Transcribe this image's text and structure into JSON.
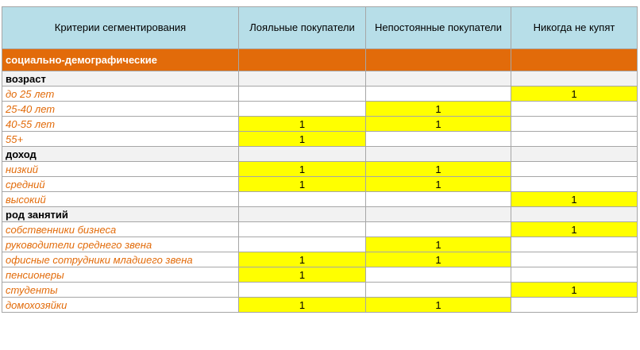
{
  "headers": [
    "Критерии сегментирования",
    "Лояльные покупатели",
    "Непостоянные покупатели",
    "Никогда не купят"
  ],
  "section_title": "социально-демографические",
  "groups": [
    {
      "title": "возраст",
      "items": [
        {
          "label": "до 25 лет",
          "values": [
            "",
            "",
            "1"
          ]
        },
        {
          "label": "25-40 лет",
          "values": [
            "",
            "1",
            ""
          ]
        },
        {
          "label": "40-55 лет",
          "values": [
            "1",
            "1",
            ""
          ]
        },
        {
          "label": "55+",
          "values": [
            "1",
            "",
            ""
          ]
        }
      ]
    },
    {
      "title": "доход",
      "items": [
        {
          "label": "низкий",
          "values": [
            "1",
            "1",
            ""
          ]
        },
        {
          "label": "средний",
          "values": [
            "1",
            "1",
            ""
          ]
        },
        {
          "label": "высокий",
          "values": [
            "",
            "",
            "1"
          ]
        }
      ]
    },
    {
      "title": "род занятий",
      "items": [
        {
          "label": "собственники бизнеса",
          "values": [
            "",
            "",
            "1"
          ]
        },
        {
          "label": "руководители среднего звена",
          "values": [
            "",
            "1",
            ""
          ]
        },
        {
          "label": "офисные сотрудники младшего звена",
          "values": [
            "1",
            "1",
            ""
          ]
        },
        {
          "label": "пенсионеры",
          "values": [
            "1",
            "",
            ""
          ]
        },
        {
          "label": "студенты",
          "values": [
            "",
            "",
            "1"
          ]
        },
        {
          "label": "домохозяйки",
          "values": [
            "1",
            "1",
            ""
          ]
        }
      ]
    }
  ],
  "colors": {
    "header_bg": "#b7dee8",
    "section_bg": "#e26b0a",
    "label_text": "#e26b0a",
    "highlight": "#ffff00",
    "group_bg": "#f2f2f2"
  }
}
